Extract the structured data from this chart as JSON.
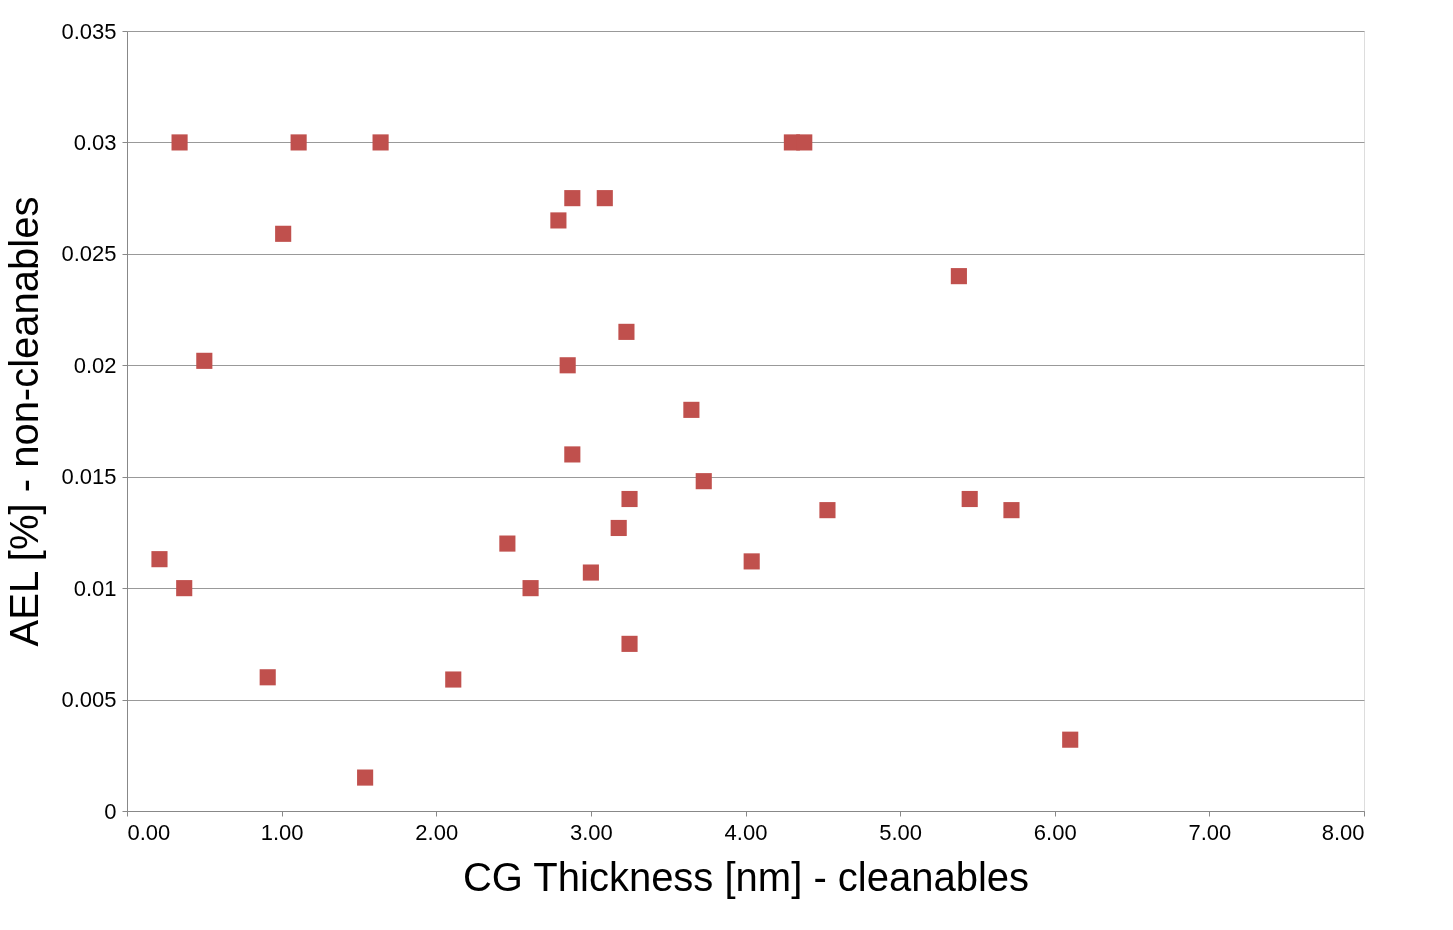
{
  "chart_data": {
    "type": "scatter",
    "xlabel": "CG Thickness [nm] - cleanables",
    "ylabel": "AEL [%] - non-cleanables",
    "x": [
      0.34,
      1.11,
      1.64,
      4.3,
      4.38,
      2.88,
      3.09,
      2.79,
      1.01,
      5.38,
      3.23,
      0.5,
      2.85,
      3.65,
      2.88,
      3.73,
      3.25,
      5.45,
      4.53,
      5.72,
      2.46,
      3.18,
      0.21,
      4.04,
      3.0,
      0.37,
      2.61,
      3.25,
      0.91,
      2.11,
      6.1,
      1.54
    ],
    "series": [
      {
        "color": "#c0504d",
        "values": [
          0.03,
          0.03,
          0.03,
          0.03,
          0.03,
          0.0275,
          0.0275,
          0.0265,
          0.0259,
          0.024,
          0.0215,
          0.0202,
          0.02,
          0.018,
          0.016,
          0.0148,
          0.014,
          0.014,
          0.0135,
          0.0135,
          0.012,
          0.0127,
          0.0113,
          0.0112,
          0.0107,
          0.01,
          0.01,
          0.0075,
          0.006,
          0.0059,
          0.0032,
          0.0015
        ]
      }
    ],
    "xlim": [
      0,
      8
    ],
    "ylim": [
      0,
      0.035
    ],
    "xticks": [
      {
        "value": 0,
        "label": "0.00"
      },
      {
        "value": 1,
        "label": "1.00"
      },
      {
        "value": 2,
        "label": "2.00"
      },
      {
        "value": 3,
        "label": "3.00"
      },
      {
        "value": 4,
        "label": "4.00"
      },
      {
        "value": 5,
        "label": "5.00"
      },
      {
        "value": 6,
        "label": "6.00"
      },
      {
        "value": 7,
        "label": "7.00"
      },
      {
        "value": 8,
        "label": "8.00"
      }
    ],
    "yticks": [
      0,
      0.005,
      0.01,
      0.015,
      0.02,
      0.025,
      0.03,
      0.035
    ],
    "grid": "y",
    "marker": "square",
    "legend": false
  }
}
